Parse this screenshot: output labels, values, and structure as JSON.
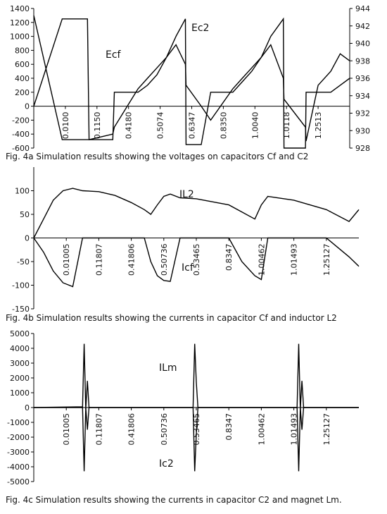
{
  "chart_data": [
    {
      "type": "line",
      "caption": "Fig. 4a  Simulation results showing the voltages on capacitors Cf and C2",
      "x": [
        0,
        0.9,
        1.7,
        1.75,
        2.5,
        2.55,
        3.3,
        3.6,
        3.9,
        4.2,
        4.5,
        4.8,
        4.82,
        5.3,
        5.6,
        6.3,
        6.6,
        6.9,
        7.2,
        7.5,
        7.9,
        7.92,
        8.6,
        8.62,
        9.0,
        9.4,
        9.7,
        10
      ],
      "xlim": [
        0,
        10
      ],
      "xticks": [
        {
          "value": 1,
          "label": "0.0100"
        },
        {
          "value": 2,
          "label": "0.1150"
        },
        {
          "value": 3,
          "label": "0.4180"
        },
        {
          "value": 4,
          "label": "0.5074"
        },
        {
          "value": 5,
          "label": "0.6347"
        },
        {
          "value": 6,
          "label": "0.8350"
        },
        {
          "value": 7,
          "label": "1.0040"
        },
        {
          "value": 8,
          "label": "1.0118"
        },
        {
          "value": 9,
          "label": "1.2513"
        }
      ],
      "ylim": [
        -600,
        1400
      ],
      "yticks": [
        -600,
        -400,
        -200,
        0,
        200,
        400,
        600,
        800,
        1000,
        1200,
        1400
      ],
      "y2lim": [
        928,
        944
      ],
      "y2ticks": [
        928,
        930,
        932,
        934,
        936,
        938,
        940,
        942,
        944
      ],
      "series": [
        {
          "name": "Ec2",
          "color": "#000000",
          "values": [
            0,
            1250,
            1250,
            -480,
            -480,
            200,
            200,
            300,
            450,
            700,
            1000,
            1250,
            -550,
            -550,
            200,
            200,
            350,
            500,
            700,
            1000,
            1250,
            -600,
            -600,
            200,
            200,
            200,
            300,
            400
          ]
        },
        {
          "name": "Ecf",
          "color": "#000000",
          "values": [
            1300,
            -480,
            -480,
            -480,
            -400,
            -300,
            250,
            400,
            550,
            700,
            880,
            600,
            300,
            0,
            -200,
            250,
            400,
            550,
            700,
            880,
            400,
            100,
            -300,
            -500,
            300,
            500,
            750,
            650
          ]
        }
      ]
    },
    {
      "type": "line",
      "caption": "Fig. 4b  Simulation results showing the currents in capacitor Cf and inductor L2",
      "x": [
        0,
        0.3,
        0.6,
        0.9,
        1.2,
        1.5,
        2,
        2.5,
        3,
        3.4,
        3.6,
        3.8,
        4.0,
        4.2,
        4.5,
        5,
        6,
        6.4,
        6.8,
        7.0,
        7.2,
        7.5,
        8,
        9,
        9.7,
        10
      ],
      "xlim": [
        0,
        10
      ],
      "xticks": [
        {
          "value": 1,
          "label": "0.01005"
        },
        {
          "value": 2,
          "label": "0.11807"
        },
        {
          "value": 3,
          "label": "0.41806"
        },
        {
          "value": 4,
          "label": "0.50736"
        },
        {
          "value": 5,
          "label": "0.53465"
        },
        {
          "value": 6,
          "label": "0.8347"
        },
        {
          "value": 7,
          "label": "1.00462"
        },
        {
          "value": 8,
          "label": "1.01493"
        },
        {
          "value": 9,
          "label": "1.25127"
        }
      ],
      "ylim": [
        -150,
        150
      ],
      "yticks": [
        -150,
        -100,
        -50,
        0,
        50,
        100
      ],
      "series": [
        {
          "name": "IL2",
          "color": "#000000",
          "values": [
            0,
            40,
            80,
            100,
            105,
            100,
            98,
            90,
            75,
            60,
            50,
            70,
            88,
            93,
            85,
            83,
            70,
            55,
            40,
            70,
            88,
            85,
            80,
            60,
            35,
            60
          ]
        },
        {
          "name": "Icf",
          "color": "#000000",
          "values": [
            0,
            -30,
            -70,
            -95,
            -103,
            0,
            0,
            0,
            0,
            0,
            -50,
            -80,
            -90,
            -92,
            0,
            0,
            0,
            -50,
            -80,
            -88,
            0,
            0,
            0,
            0,
            -40,
            -60
          ]
        }
      ]
    },
    {
      "type": "line",
      "caption": "Fig. 4c  Simulation results showing the currents in capacitor C2 and magnet Lm.",
      "x": [
        0,
        1.5,
        1.55,
        1.6,
        1.65,
        1.7,
        1.75,
        2,
        4.9,
        4.95,
        5.0,
        5.05,
        5.1,
        8.1,
        8.15,
        8.2,
        8.25,
        8.3,
        10
      ],
      "xlim": [
        0,
        10
      ],
      "xticks": [
        {
          "value": 1,
          "label": "0.01005"
        },
        {
          "value": 2,
          "label": "0.11807"
        },
        {
          "value": 3,
          "label": "0.41806"
        },
        {
          "value": 4,
          "label": "0.50736"
        },
        {
          "value": 5,
          "label": "0.53465"
        },
        {
          "value": 6,
          "label": "0.8347"
        },
        {
          "value": 7,
          "label": "1.00462"
        },
        {
          "value": 8,
          "label": "1.01493"
        },
        {
          "value": 9,
          "label": "1.25127"
        }
      ],
      "ylim": [
        -5000,
        5000
      ],
      "yticks": [
        -5000,
        -4000,
        -3000,
        -2000,
        -1000,
        0,
        1000,
        2000,
        3000,
        4000,
        5000
      ],
      "series": [
        {
          "name": "ILm",
          "color": "#000000",
          "values": [
            0,
            50,
            4300,
            -100,
            1800,
            0,
            0,
            0,
            0,
            4300,
            1700,
            0,
            0,
            0,
            4300,
            -100,
            1800,
            0,
            0
          ]
        },
        {
          "name": "Ic2",
          "color": "#000000",
          "values": [
            0,
            0,
            -4300,
            0,
            -1500,
            0,
            0,
            0,
            0,
            -4300,
            -1800,
            0,
            0,
            0,
            -4300,
            0,
            -1500,
            0,
            0
          ]
        }
      ]
    }
  ]
}
